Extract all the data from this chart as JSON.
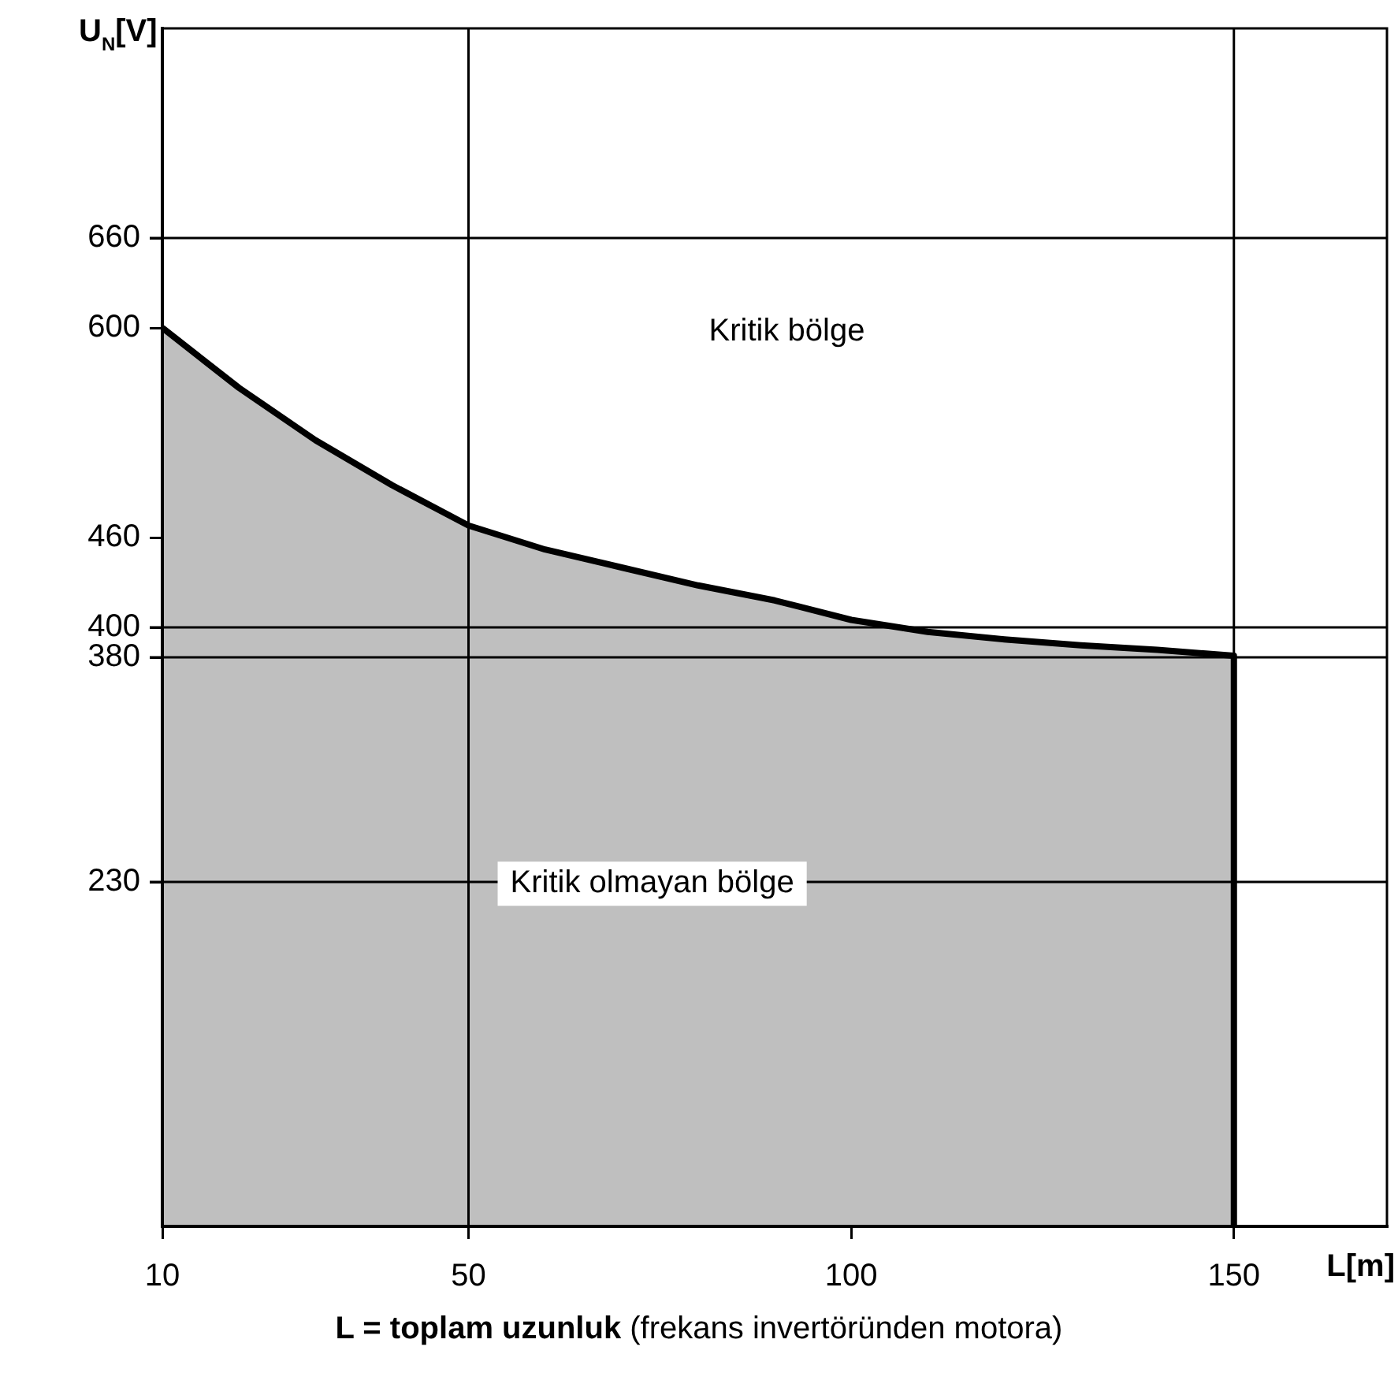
{
  "chart_data": {
    "type": "area",
    "xlabel": "L[m]",
    "ylabel": "U$_{N}$[V]",
    "x": [
      10,
      20,
      30,
      40,
      50,
      60,
      70,
      80,
      90,
      100,
      110,
      120,
      130,
      140,
      150,
      150
    ],
    "series": [
      {
        "color": "#000000",
        "values": [
          600,
          560,
          525,
          495,
          468,
          452,
          440,
          428,
          418,
          405,
          397,
          392,
          388,
          385,
          381,
          0
        ]
      }
    ],
    "xlim": [
      10,
      170
    ],
    "xticks": [
      10,
      50,
      100,
      150
    ],
    "ylim": [
      0,
      800
    ],
    "yticks": [
      230,
      380,
      400,
      460,
      600,
      660
    ],
    "grid": false,
    "legend": false,
    "marker": "none",
    "line_style": "solid",
    "ref_lines": [
      {
        "axis": "y",
        "value": 660
      },
      {
        "axis": "y",
        "value": 400
      },
      {
        "axis": "y",
        "value": 380
      },
      {
        "axis": "y",
        "value": 230
      },
      {
        "axis": "x",
        "value": 50
      },
      {
        "axis": "x",
        "value": 150
      }
    ],
    "annotations": [
      "Kritik bölge",
      "Kritik olmayan bölge",
      "L = toplam uzunluk (frekans invertöründen motora)"
    ]
  }
}
